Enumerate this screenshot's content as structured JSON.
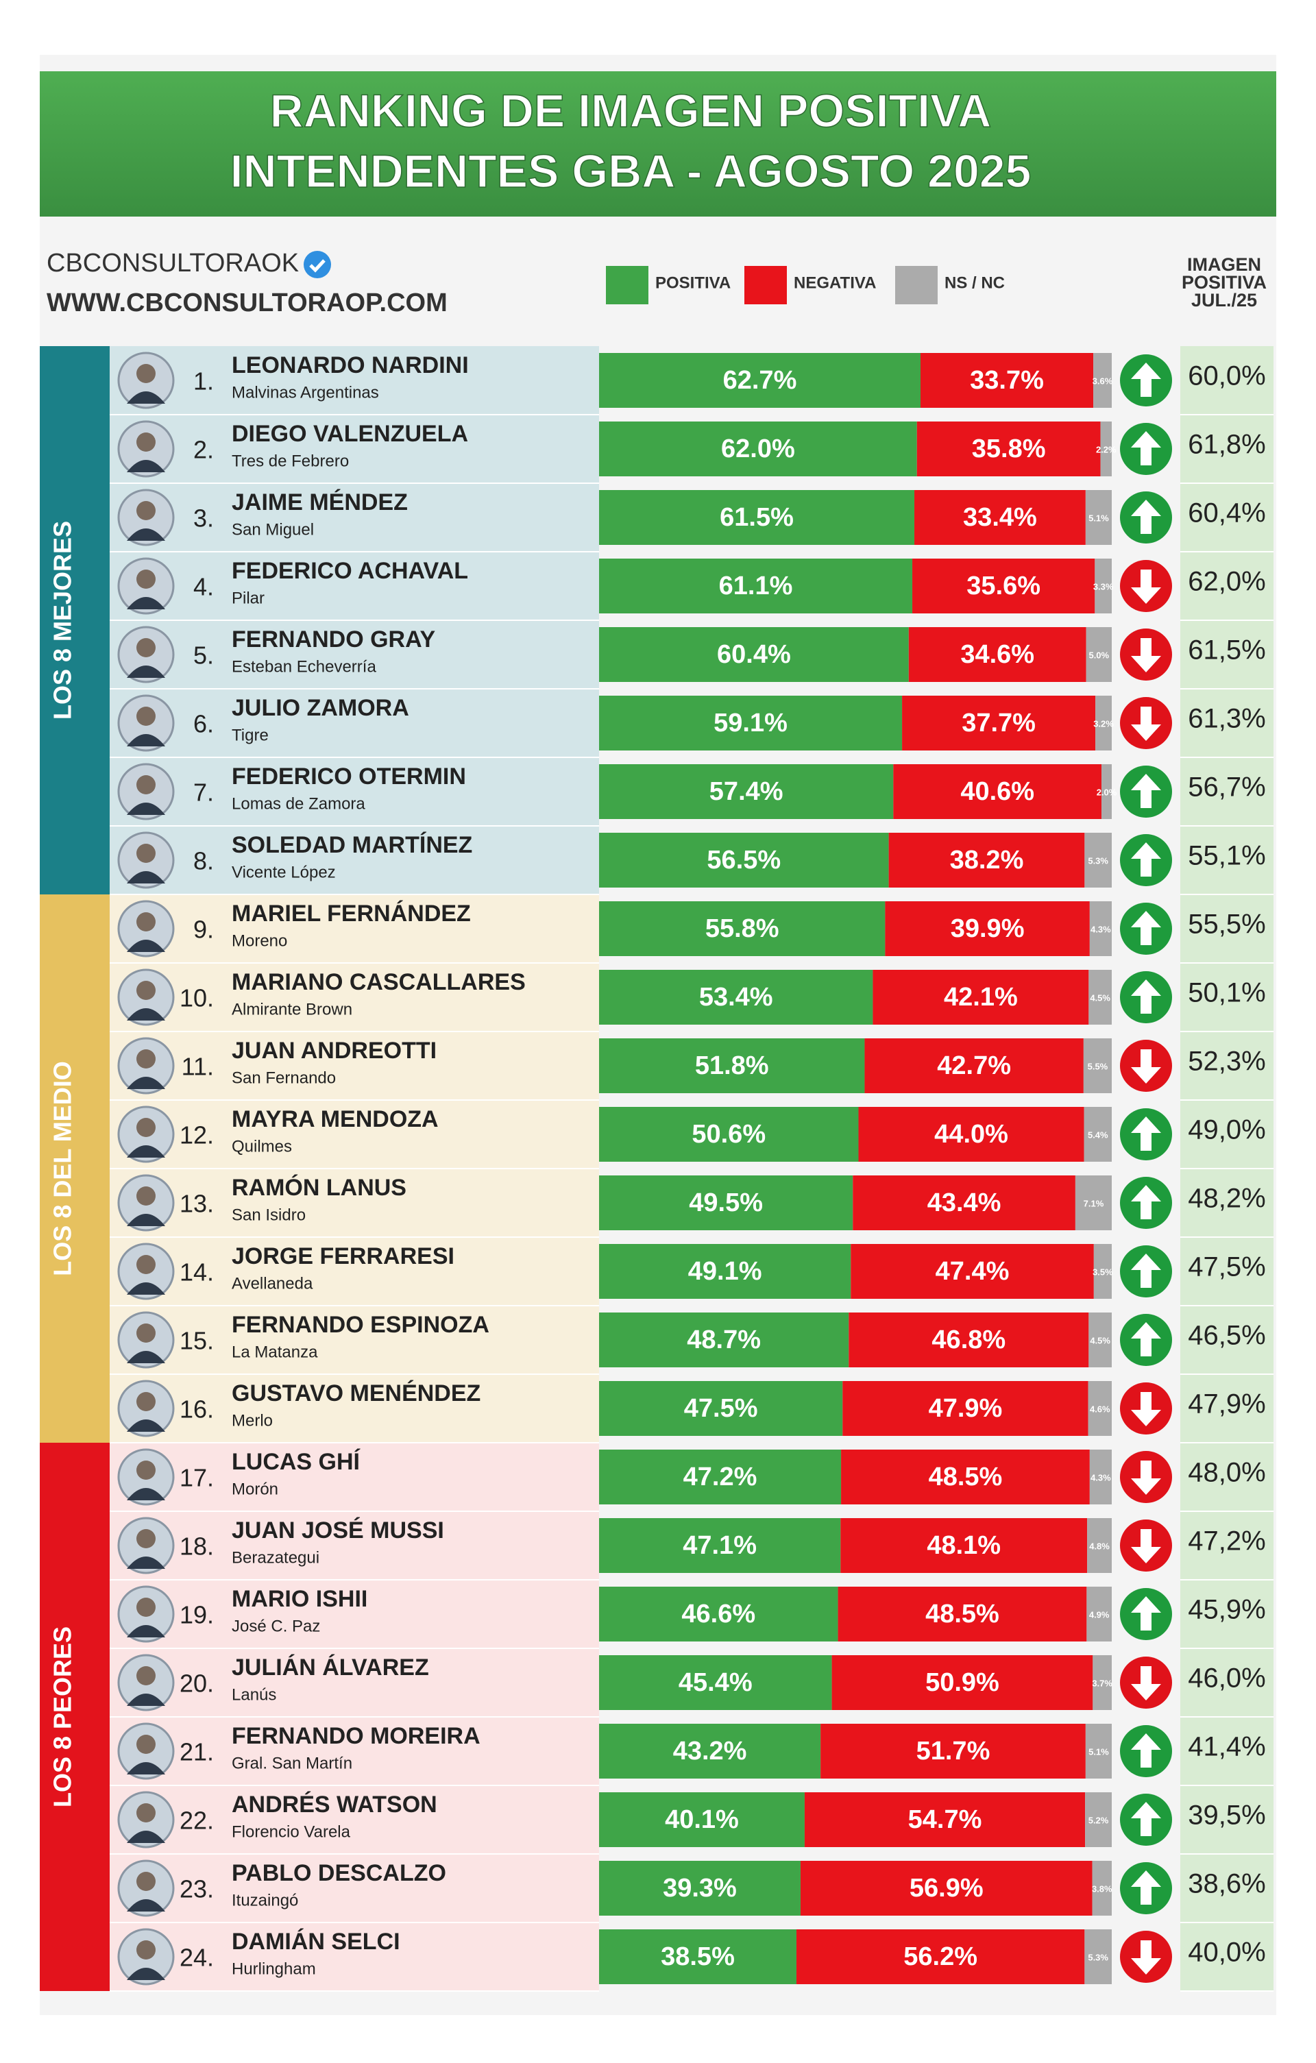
{
  "chart_data": {
    "type": "stacked-barh",
    "title": "RANKING DE IMAGEN POSITIVA",
    "subtitle": "INTENDENTES GBA - AGOSTO 2025",
    "source": "CBCONSULTORAOK",
    "website": "WWW.CBCONSULTORAOP.COM",
    "groups": [
      {
        "label": "LOS 8 MEJORES",
        "color": "#1b8088",
        "row_color": "#d3e5e8"
      },
      {
        "label": "LOS 8 DEL MEDIO",
        "color": "#e6c15f",
        "row_color": "#f8f0dc"
      },
      {
        "label": "LOS 8 PEORES",
        "color": "#e3131c",
        "row_color": "#fbe4e4"
      }
    ],
    "ranks": [
      "1.",
      "2.",
      "3.",
      "4.",
      "5.",
      "6.",
      "7.",
      "8.",
      "9.",
      "10.",
      "11.",
      "12.",
      "13.",
      "14.",
      "15.",
      "16.",
      "17.",
      "18.",
      "19.",
      "20.",
      "21.",
      "22.",
      "23.",
      "24."
    ],
    "categories": [
      "LEONARDO NARDINI",
      "DIEGO VALENZUELA",
      "JAIME MÉNDEZ",
      "FEDERICO ACHAVAL",
      "FERNANDO GRAY",
      "JULIO ZAMORA",
      "FEDERICO OTERMIN",
      "SOLEDAD MARTÍNEZ",
      "MARIEL FERNÁNDEZ",
      "MARIANO CASCALLARES",
      "JUAN ANDREOTTI",
      "MAYRA MENDOZA",
      "RAMÓN LANUS",
      "JORGE FERRARESI",
      "FERNANDO ESPINOZA",
      "GUSTAVO MENÉNDEZ",
      "LUCAS GHÍ",
      "JUAN JOSÉ MUSSI",
      "MARIO ISHII",
      "JULIÁN ÁLVAREZ",
      "FERNANDO MOREIRA",
      "ANDRÉS WATSON",
      "PABLO DESCALZO",
      "DAMIÁN SELCI"
    ],
    "municipalities": [
      "Malvinas Argentinas",
      "Tres de Febrero",
      "San Miguel",
      "Pilar",
      "Esteban Echeverría",
      "Tigre",
      "Lomas de Zamora",
      "Vicente López",
      "Moreno",
      "Almirante Brown",
      "San Fernando",
      "Quilmes",
      "San Isidro",
      "Avellaneda",
      "La Matanza",
      "Merlo",
      "Morón",
      "Berazategui",
      "José C. Paz",
      "Lanús",
      "Gral. San Martín",
      "Florencio Varela",
      "Ituzaingó",
      "Hurlingham"
    ],
    "series": [
      {
        "name": "POSITIVA",
        "color": "#3fa548",
        "values": [
          62.7,
          62.0,
          61.5,
          61.1,
          60.4,
          59.1,
          57.4,
          56.5,
          55.8,
          53.4,
          51.8,
          50.6,
          49.5,
          49.1,
          48.7,
          47.5,
          47.2,
          47.1,
          46.6,
          45.4,
          43.2,
          40.1,
          39.3,
          38.5
        ],
        "value_labels": [
          "62.7%",
          "62.0%",
          "61.5%",
          "61.1%",
          "60.4%",
          "59.1%",
          "57.4%",
          "56.5%",
          "55.8%",
          "53.4%",
          "51.8%",
          "50.6%",
          "49.5%",
          "49.1%",
          "48.7%",
          "47.5%",
          "47.2%",
          "47.1%",
          "46.6%",
          "45.4%",
          "43.2%",
          "40.1%",
          "39.3%",
          "38.5%"
        ]
      },
      {
        "name": "NEGATIVA",
        "color": "#e8141b",
        "values": [
          33.7,
          35.8,
          33.4,
          35.6,
          34.6,
          37.7,
          40.6,
          38.2,
          39.9,
          42.1,
          42.7,
          44.0,
          43.4,
          47.4,
          46.8,
          47.9,
          48.5,
          48.1,
          48.5,
          50.9,
          51.7,
          54.7,
          56.9,
          56.2
        ],
        "value_labels": [
          "33.7%",
          "35.8%",
          "33.4%",
          "35.6%",
          "34.6%",
          "37.7%",
          "40.6%",
          "38.2%",
          "39.9%",
          "42.1%",
          "42.7%",
          "44.0%",
          "43.4%",
          "47.4%",
          "46.8%",
          "47.9%",
          "48.5%",
          "48.1%",
          "48.5%",
          "50.9%",
          "51.7%",
          "54.7%",
          "56.9%",
          "56.2%"
        ]
      },
      {
        "name": "NS / NC",
        "color": "#ababab",
        "values": [
          3.6,
          2.2,
          5.1,
          3.3,
          5.0,
          3.2,
          2.0,
          5.3,
          4.3,
          4.5,
          5.5,
          5.4,
          7.1,
          3.5,
          4.5,
          4.6,
          4.3,
          4.8,
          4.9,
          3.7,
          5.1,
          5.2,
          3.8,
          5.3
        ],
        "value_labels": [
          "3.6%",
          "2.2%",
          "5.1%",
          "3.3%",
          "5.0%",
          "3.2%",
          "2.0%",
          "5.3%",
          "4.3%",
          "4.5%",
          "5.5%",
          "5.4%",
          "7.1%",
          "3.5%",
          "4.5%",
          "4.6%",
          "4.3%",
          "4.8%",
          "4.9%",
          "3.7%",
          "5.1%",
          "5.2%",
          "3.8%",
          "5.3%"
        ]
      }
    ],
    "previous": {
      "header": [
        "IMAGEN",
        "POSITIVA",
        "JUL./25"
      ],
      "values": [
        60.0,
        61.8,
        60.4,
        62.0,
        61.5,
        61.3,
        56.7,
        55.1,
        55.5,
        50.1,
        52.3,
        49.0,
        48.2,
        47.5,
        46.5,
        47.9,
        48.0,
        47.2,
        45.9,
        46.0,
        41.4,
        39.5,
        38.6,
        40.0
      ],
      "value_labels": [
        "60,0%",
        "61,8%",
        "60,4%",
        "62,0%",
        "61,5%",
        "61,3%",
        "56,7%",
        "55,1%",
        "55,5%",
        "50,1%",
        "52,3%",
        "49,0%",
        "48,2%",
        "47,5%",
        "46,5%",
        "47,9%",
        "48,0%",
        "47,2%",
        "45,9%",
        "46,0%",
        "41,4%",
        "39,5%",
        "38,6%",
        "40,0%"
      ]
    }
  }
}
